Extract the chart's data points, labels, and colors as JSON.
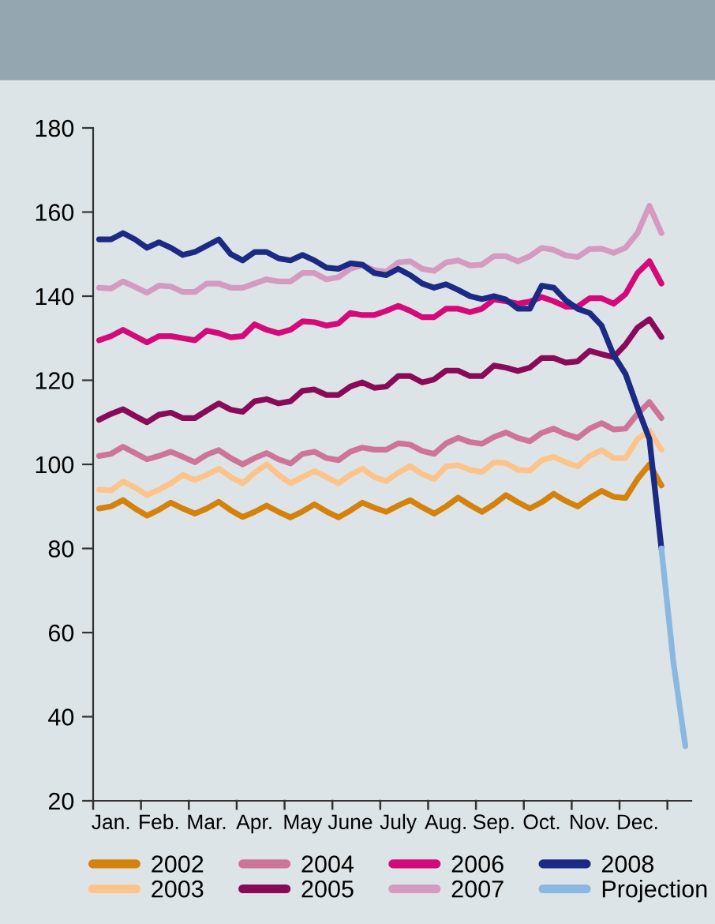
{
  "chart_data": {
    "type": "line",
    "categories": [
      null,
      "Jan.",
      null,
      null,
      null,
      "Feb.",
      null,
      null,
      null,
      "Mar.",
      null,
      null,
      null,
      "Apr.",
      null,
      null,
      null,
      "May",
      null,
      null,
      null,
      "June",
      null,
      null,
      null,
      "July",
      null,
      null,
      null,
      "Aug.",
      null,
      null,
      null,
      "Sep.",
      null,
      null,
      null,
      "Oct.",
      null,
      null,
      null,
      "Nov.",
      null,
      null,
      null,
      "Dec.",
      null,
      null,
      null,
      null
    ],
    "ylim": [
      20,
      180
    ],
    "yticks": [
      20,
      40,
      60,
      80,
      100,
      120,
      140,
      160,
      180
    ],
    "grid": false,
    "legend": "bottom",
    "marker": "none",
    "line_style": "solid",
    "series": [
      {
        "name": "2002",
        "color": "#d4820c",
        "values": [
          89.5,
          90,
          91.5,
          89.5,
          87.8,
          89.2,
          90.9,
          89.5,
          88.3,
          89.5,
          91.1,
          89.1,
          87.5,
          88.7,
          90.2,
          88.7,
          87.4,
          88.8,
          90.5,
          88.8,
          87.4,
          89,
          90.9,
          89.7,
          88.7,
          90.2,
          91.5,
          89.8,
          88.3,
          90,
          92.1,
          90.3,
          88.7,
          90.5,
          92.7,
          91,
          89.5,
          91,
          93,
          91.3,
          90,
          92,
          93.7,
          92.3,
          92,
          96.5,
          100,
          95,
          null,
          null
        ]
      },
      {
        "name": "2003",
        "color": "#fcc48a",
        "values": [
          94,
          93.8,
          95.9,
          94.5,
          92.7,
          94,
          95.5,
          97.5,
          96.3,
          97.5,
          99,
          97,
          95.5,
          98,
          100,
          97.5,
          95.5,
          97,
          98.4,
          97,
          95.5,
          97.5,
          99,
          97,
          96,
          98,
          99.6,
          97.7,
          96.5,
          99.5,
          99.8,
          98.7,
          98.2,
          100.5,
          100.3,
          98.7,
          98.5,
          101,
          101.8,
          100.5,
          99.5,
          102,
          103.4,
          101.5,
          101.5,
          106,
          108,
          103.5,
          null,
          null
        ]
      },
      {
        "name": "2004",
        "color": "#cf7499",
        "values": [
          102,
          102.5,
          104.2,
          102.7,
          101.2,
          102,
          103,
          101.8,
          100.5,
          102.3,
          103.4,
          101.5,
          100,
          101.5,
          102.7,
          101.2,
          100.2,
          102.5,
          103,
          101.5,
          101,
          103,
          104,
          103.5,
          103.5,
          105,
          104.7,
          103.2,
          102.5,
          105,
          106.3,
          105.3,
          104.9,
          106.5,
          107.6,
          106.3,
          105.5,
          107.5,
          108.5,
          107.2,
          106.3,
          108.5,
          109.8,
          108.3,
          108.5,
          112,
          114.8,
          111,
          null,
          null
        ]
      },
      {
        "name": "2005",
        "color": "#8a0a5a",
        "values": [
          110.6,
          112,
          113.1,
          111.5,
          110,
          111.8,
          112.3,
          111,
          111,
          112.8,
          114.5,
          113,
          112.5,
          115,
          115.5,
          114.5,
          115,
          117.5,
          117.8,
          116.5,
          116.5,
          118.5,
          119.5,
          118.2,
          118.5,
          121,
          121,
          119.5,
          120.2,
          122.3,
          122.3,
          121,
          121,
          123.5,
          123,
          122.2,
          123,
          125.3,
          125.3,
          124.2,
          124.5,
          127,
          126.2,
          125.5,
          128.5,
          132.5,
          134.5,
          130.3,
          null,
          null
        ]
      },
      {
        "name": "2006",
        "color": "#d4097a",
        "values": [
          129.5,
          130.5,
          132,
          130.5,
          129,
          130.5,
          130.5,
          130,
          129.5,
          131.8,
          131.2,
          130.2,
          130.5,
          133.3,
          132,
          131.2,
          132,
          134,
          133.8,
          133,
          133.5,
          136,
          135.5,
          135.5,
          136.5,
          137.7,
          136.5,
          135,
          135,
          137,
          137,
          136.2,
          137,
          139.2,
          138.8,
          138.2,
          138.7,
          139.8,
          138.8,
          137.5,
          137.5,
          139.5,
          139.5,
          138.2,
          140.5,
          145.5,
          148.3,
          143,
          null,
          null
        ]
      },
      {
        "name": "2007",
        "color": "#d59ac0",
        "values": [
          142,
          141.8,
          143.5,
          142.2,
          140.8,
          142.5,
          142.3,
          141,
          141,
          143,
          143,
          142,
          142,
          143,
          144,
          143.5,
          143.5,
          145.5,
          145.5,
          144,
          144.5,
          146.5,
          147.3,
          146.2,
          145.8,
          148,
          148.3,
          146.5,
          146,
          148,
          148.5,
          147.3,
          147.5,
          149.5,
          149.5,
          148.3,
          149.5,
          151.5,
          151,
          149.7,
          149.3,
          151.2,
          151.3,
          150.3,
          151.5,
          155,
          161.5,
          155,
          null,
          null
        ]
      },
      {
        "name": "2008",
        "color": "#1a2a85",
        "values": [
          153.5,
          153.5,
          155,
          153.5,
          151.5,
          152.8,
          151.5,
          149.8,
          150.5,
          152,
          153.5,
          150,
          148.5,
          150.5,
          150.5,
          149,
          148.5,
          149.8,
          148.5,
          146.8,
          146.5,
          147.8,
          147.5,
          145.5,
          145,
          146.5,
          145,
          143,
          142,
          142.8,
          141.5,
          140,
          139.3,
          140,
          139.2,
          137,
          137,
          142.5,
          142,
          139,
          137,
          136,
          133,
          126,
          121.5,
          113.5,
          106,
          80,
          null,
          null
        ]
      },
      {
        "name": "Projection",
        "color": "#8ab8e0",
        "values": [
          null,
          null,
          null,
          null,
          null,
          null,
          null,
          null,
          null,
          null,
          null,
          null,
          null,
          null,
          null,
          null,
          null,
          null,
          null,
          null,
          null,
          null,
          null,
          null,
          null,
          null,
          null,
          null,
          null,
          null,
          null,
          null,
          null,
          null,
          null,
          null,
          null,
          null,
          null,
          null,
          null,
          null,
          null,
          null,
          null,
          null,
          null,
          80,
          53,
          33
        ]
      }
    ]
  }
}
